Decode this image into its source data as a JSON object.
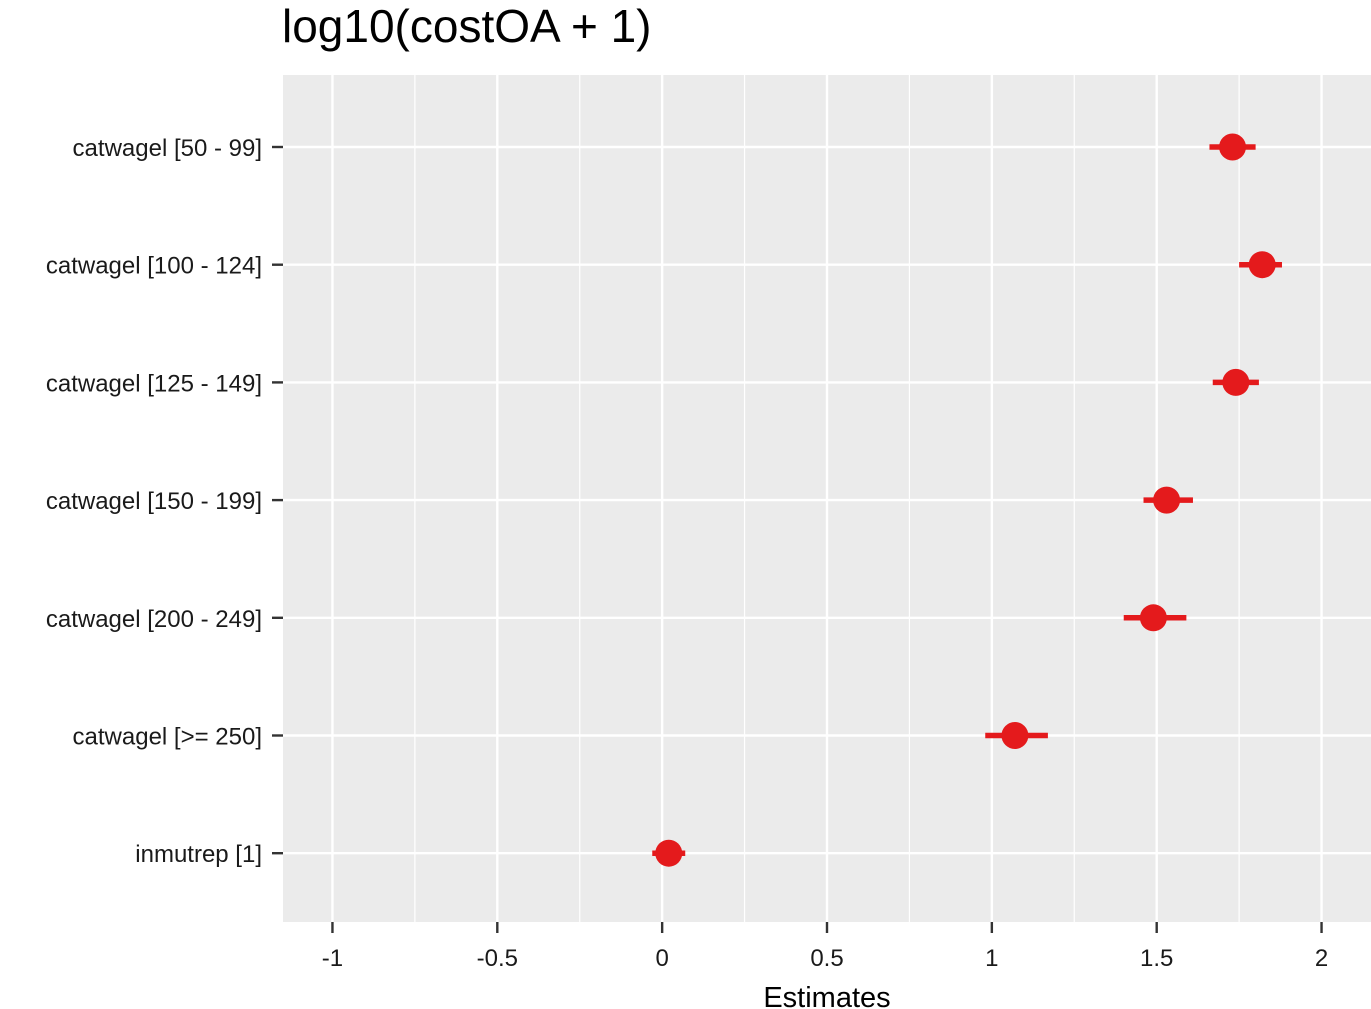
{
  "chart_data": {
    "type": "scatter",
    "title": "log10(costOA + 1)",
    "xlabel": "Estimates",
    "ylabel": "",
    "xlim": [
      -1.15,
      2.15
    ],
    "x_ticks": [
      -1,
      -0.5,
      0,
      0.5,
      1,
      1.5,
      2
    ],
    "x_tick_labels": [
      "-1",
      "-0.5",
      "0",
      "0.5",
      "1",
      "1.5",
      "2"
    ],
    "categories": [
      "catwagel [50 - 99]",
      "catwagel [100 - 124]",
      "catwagel [125 - 149]",
      "catwagel [150 - 199]",
      "catwagel [200 - 249]",
      "catwagel [>= 250]",
      "inmutrep [1]"
    ],
    "estimates": [
      1.73,
      1.82,
      1.74,
      1.53,
      1.49,
      1.07,
      0.02
    ],
    "conf_low": [
      1.66,
      1.75,
      1.67,
      1.46,
      1.4,
      0.98,
      -0.03
    ],
    "conf_high": [
      1.8,
      1.88,
      1.81,
      1.61,
      1.59,
      1.17,
      0.07
    ],
    "grid": true,
    "legend": "none",
    "colors": {
      "point": "#e41a1c",
      "panel": "#ebebeb",
      "grid": "#ffffff",
      "axis_ticks": "#333333"
    }
  }
}
